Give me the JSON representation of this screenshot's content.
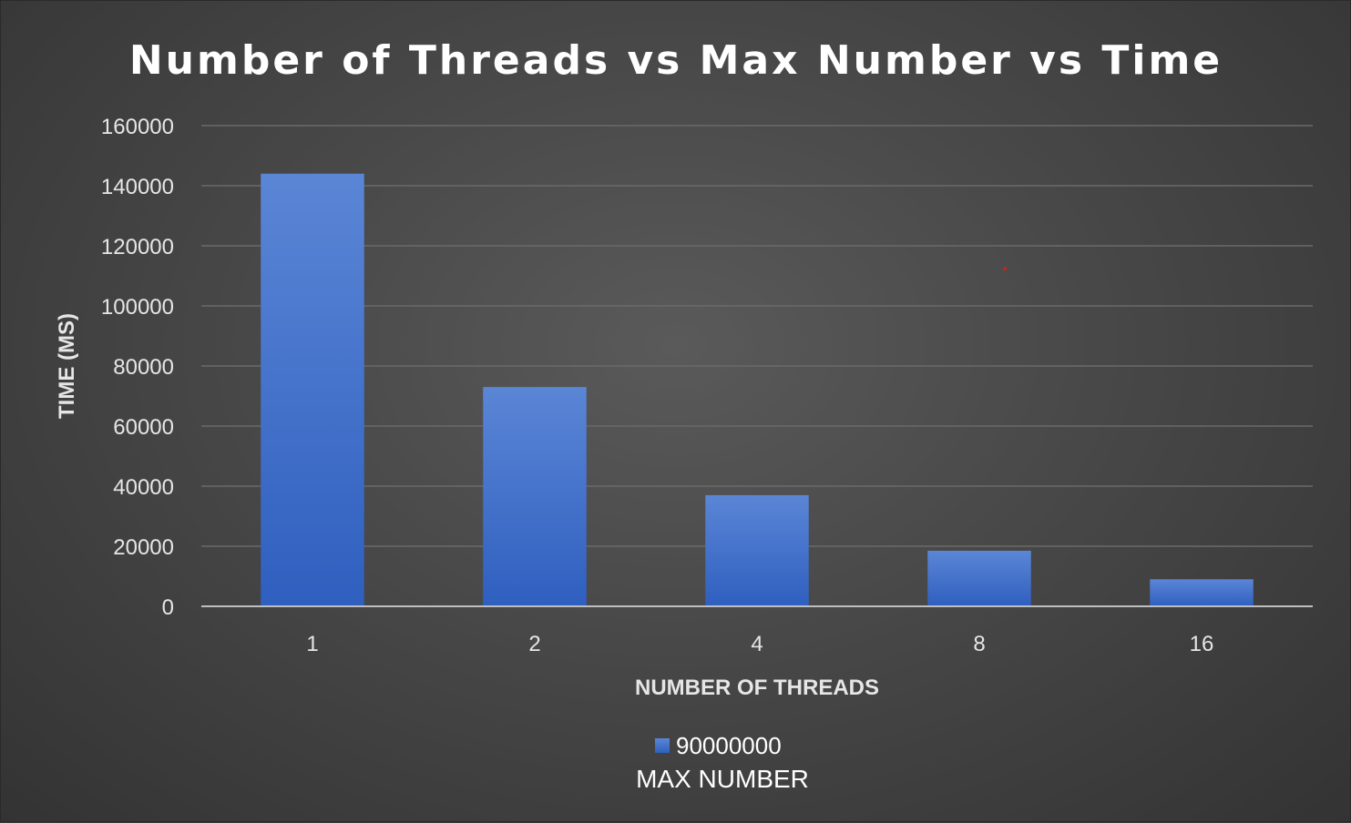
{
  "chart_data": {
    "type": "bar",
    "title": "Number of Threads vs Max Number vs Time",
    "xlabel": "NUMBER OF THREADS",
    "ylabel": "TIME (MS)",
    "categories": [
      "1",
      "2",
      "4",
      "8",
      "16"
    ],
    "series": [
      {
        "name": "90000000",
        "values": [
          144000,
          73000,
          37000,
          18500,
          9000
        ]
      }
    ],
    "ylim": [
      0,
      160000
    ],
    "yticks": [
      "0",
      "20000",
      "40000",
      "60000",
      "80000",
      "100000",
      "120000",
      "140000",
      "160000"
    ],
    "grid": true,
    "legend": {
      "position": "bottom",
      "title": "MAX NUMBER"
    },
    "colors": {
      "bar_top": "#5b86d6",
      "bar_bottom": "#2f5fbf",
      "background": "#4a4a4a"
    }
  }
}
